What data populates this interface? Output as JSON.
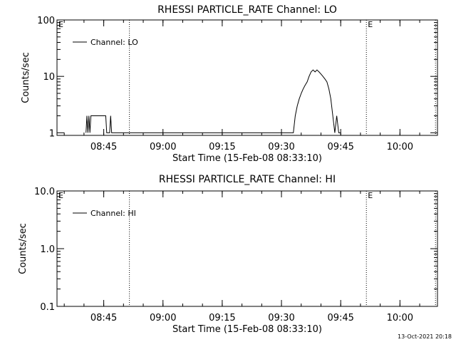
{
  "chart_data": [
    {
      "type": "line",
      "title": "RHESSI PARTICLE_RATE Channel: LO",
      "xlabel": "Start Time (15-Feb-08 08:33:10)",
      "ylabel": "Counts/sec",
      "y_scale": "log",
      "xlim": [
        "08:33:10",
        "10:09:30"
      ],
      "ylim": [
        0.9,
        100
      ],
      "x_ticks": [
        "08:45",
        "09:00",
        "09:15",
        "09:30",
        "09:45",
        "10:00"
      ],
      "y_ticks": [
        "1",
        "10",
        "100"
      ],
      "legend": "top-left",
      "grid": false,
      "series": [
        {
          "name": "Channel: LO",
          "x": [
            "08:40:30",
            "08:40:45",
            "08:41:00",
            "08:41:15",
            "08:41:30",
            "08:41:45",
            "08:42:00",
            "08:42:15",
            "08:42:30",
            "08:45:30",
            "08:45:45",
            "08:46:00",
            "08:46:30",
            "08:46:45",
            "08:47:00",
            "09:33:00",
            "09:33:30",
            "09:34:00",
            "09:34:30",
            "09:35:00",
            "09:35:30",
            "09:36:00",
            "09:36:30",
            "09:37:00",
            "09:37:30",
            "09:38:00",
            "09:38:30",
            "09:39:00",
            "09:39:30",
            "09:40:00",
            "09:40:30",
            "09:41:00",
            "09:41:30",
            "09:42:00",
            "09:42:30",
            "09:43:00",
            "09:43:30",
            "09:44:00",
            "09:44:30",
            "09:45:00"
          ],
          "y": [
            1,
            2,
            1,
            2,
            1,
            2,
            2,
            2,
            2,
            2,
            1,
            1,
            1,
            2,
            1,
            1,
            2,
            3,
            4,
            5,
            6,
            7,
            8,
            10,
            12,
            13,
            12,
            13,
            12,
            11,
            10,
            9,
            8,
            6,
            4,
            2,
            1,
            2,
            1,
            1
          ]
        }
      ],
      "markers": [
        {
          "label": "E",
          "x": "08:33:10"
        },
        {
          "label": "",
          "x": "08:51:30"
        },
        {
          "label": "E",
          "x": "09:51:30"
        },
        {
          "label": "",
          "x": "10:09:00"
        }
      ]
    },
    {
      "type": "line",
      "title": "RHESSI PARTICLE_RATE Channel: HI",
      "xlabel": "Start Time (15-Feb-08 08:33:10)",
      "ylabel": "Counts/sec",
      "y_scale": "log",
      "xlim": [
        "08:33:10",
        "10:09:30"
      ],
      "ylim": [
        0.1,
        10
      ],
      "x_ticks": [
        "08:45",
        "09:00",
        "09:15",
        "09:30",
        "09:45",
        "10:00"
      ],
      "y_ticks": [
        "0.1",
        "1.0",
        "10.0"
      ],
      "legend": "top-left",
      "grid": false,
      "series": [
        {
          "name": "Channel: HI",
          "x": [],
          "y": []
        }
      ],
      "markers": [
        {
          "label": "E",
          "x": "08:33:10"
        },
        {
          "label": "",
          "x": "08:51:30"
        },
        {
          "label": "E",
          "x": "09:51:30"
        },
        {
          "label": "",
          "x": "10:09:00"
        }
      ]
    }
  ],
  "footer": "13-Oct-2021 20:18"
}
